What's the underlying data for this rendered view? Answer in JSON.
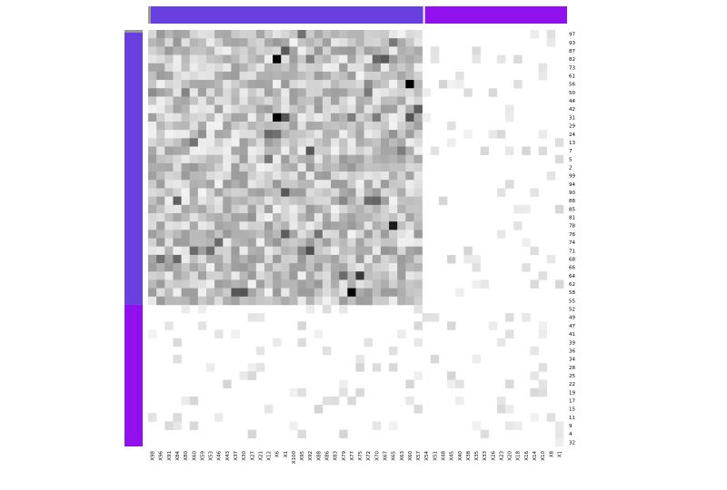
{
  "chart_data": {
    "type": "heatmap",
    "title": "",
    "xlabel": "",
    "ylabel": "",
    "row_labels": [
      "97",
      "93",
      "87",
      "82",
      "73",
      "61",
      "56",
      "50",
      "44",
      "42",
      "31",
      "29",
      "24",
      "13",
      "7",
      "5",
      "2",
      "99",
      "94",
      "90",
      "88",
      "85",
      "81",
      "78",
      "76",
      "74",
      "71",
      "68",
      "66",
      "64",
      "62",
      "58",
      "55",
      "52",
      "49",
      "47",
      "41",
      "39",
      "36",
      "34",
      "28",
      "25",
      "22",
      "19",
      "17",
      "15",
      "11",
      "9",
      "4",
      "32"
    ],
    "col_labels": [
      "X98",
      "X96",
      "X91",
      "X84",
      "X80",
      "X60",
      "X59",
      "X53",
      "X46",
      "X43",
      "X37",
      "X30",
      "X27",
      "X21",
      "X12",
      "X6",
      "X1",
      "X100",
      "X95",
      "X92",
      "X88",
      "X86",
      "X83",
      "X79",
      "X77",
      "X75",
      "X72",
      "X70",
      "X67",
      "X65",
      "X63",
      "X60",
      "X57",
      "X54",
      "X51",
      "X48",
      "X45",
      "X40",
      "X38",
      "X35",
      "X33",
      "X26",
      "X23",
      "X20",
      "X18",
      "X16",
      "X14",
      "X10",
      "X8",
      "X1"
    ],
    "col_groups": [
      {
        "start": 0,
        "end": 33,
        "color": "#6a3fdf"
      },
      {
        "start": 33,
        "end": 50,
        "color": "#9010ee"
      }
    ],
    "row_groups": [
      {
        "start": 0,
        "end": 33,
        "color": "#6a3fdf"
      },
      {
        "start": 33,
        "end": 50,
        "color": "#9010ee"
      }
    ],
    "dense_block": {
      "rows": 33,
      "cols": 33,
      "density": "high"
    },
    "sparse_region_density": "low",
    "value_range": [
      0,
      1
    ],
    "colorscale": [
      "#ffffff",
      "#000000"
    ],
    "legend": "none",
    "grid": false
  }
}
